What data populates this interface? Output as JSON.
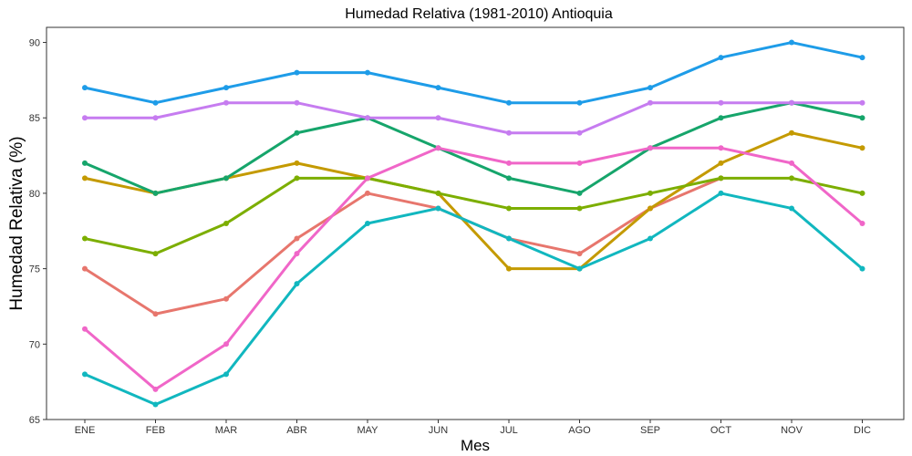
{
  "chart_data": {
    "type": "line",
    "title": "Humedad Relativa (1981-2010)  Antioquia",
    "xlabel": "Mes",
    "ylabel": "Humedad Relativa   (%)",
    "categories": [
      "ENE",
      "FEB",
      "MAR",
      "ABR",
      "MAY",
      "JUN",
      "JUL",
      "AGO",
      "SEP",
      "OCT",
      "NOV",
      "DIC"
    ],
    "ylim": [
      65,
      91
    ],
    "yticks": [
      65,
      70,
      75,
      80,
      85,
      90
    ],
    "grid": false,
    "legend": "none",
    "series": [
      {
        "color": "#e7766d",
        "values": [
          75,
          72,
          73,
          77,
          80,
          79,
          77,
          76,
          79,
          81,
          null,
          null
        ]
      },
      {
        "color": "#c49a00",
        "values": [
          81,
          80,
          81,
          82,
          81,
          80,
          75,
          75,
          79,
          82,
          84,
          83
        ]
      },
      {
        "color": "#7cae00",
        "values": [
          77,
          76,
          78,
          81,
          81,
          80,
          79,
          79,
          80,
          81,
          81,
          80
        ]
      },
      {
        "color": "#16a56b",
        "values": [
          82,
          80,
          81,
          84,
          85,
          83,
          81,
          80,
          83,
          85,
          86,
          85
        ]
      },
      {
        "color": "#11b7bf",
        "values": [
          68,
          66,
          68,
          74,
          78,
          79,
          77,
          75,
          77,
          80,
          79,
          75
        ]
      },
      {
        "color": "#1e9ce8",
        "values": [
          87,
          86,
          87,
          88,
          88,
          87,
          86,
          86,
          87,
          89,
          90,
          89
        ]
      },
      {
        "color": "#c67cf0",
        "values": [
          85,
          85,
          86,
          86,
          85,
          85,
          84,
          84,
          86,
          86,
          86,
          86
        ]
      },
      {
        "color": "#f066c8",
        "values": [
          71,
          67,
          70,
          76,
          81,
          83,
          82,
          82,
          83,
          83,
          82,
          78
        ]
      }
    ]
  }
}
